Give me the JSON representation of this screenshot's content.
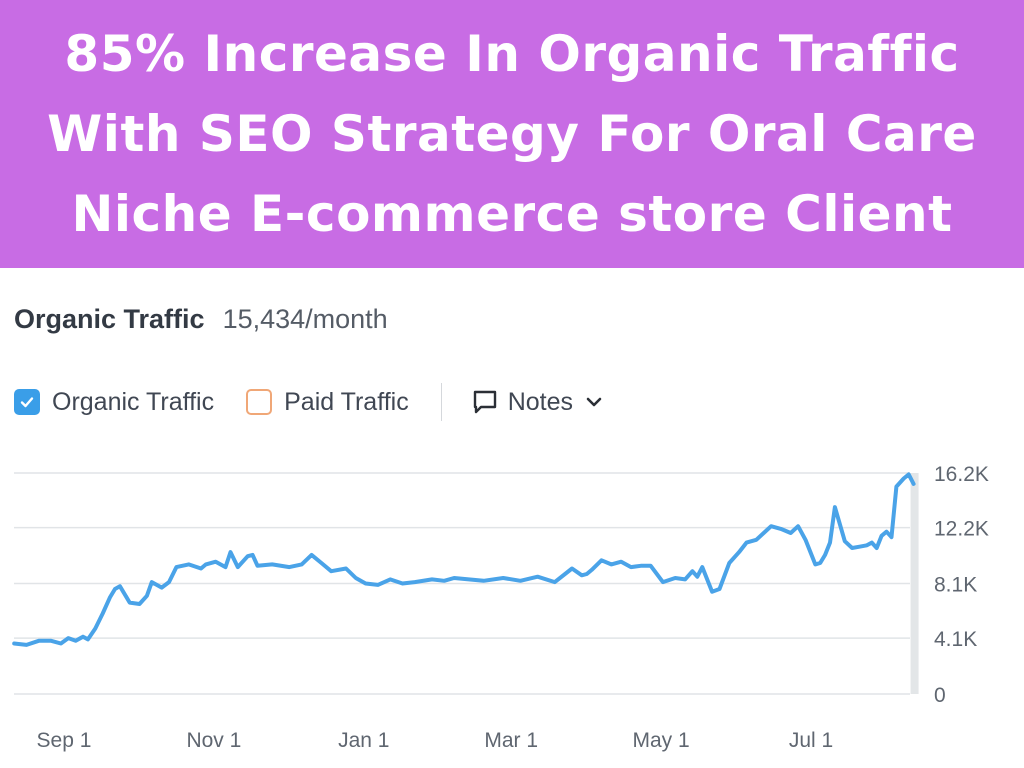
{
  "banner": {
    "lines": [
      "85% Increase In Organic Traffic",
      "With SEO Strategy For Oral Care",
      "Niche E-commerce store Client"
    ]
  },
  "metric": {
    "label": "Organic Traffic",
    "value": "15,434/month"
  },
  "legend": {
    "organic_label": "Organic Traffic",
    "organic_checked": true,
    "paid_label": "Paid Traffic",
    "paid_checked": false,
    "notes_label": "Notes"
  },
  "colors": {
    "banner": "#c86ce4",
    "series": "#4aa3e8",
    "paid": "#f0a777"
  },
  "chart_data": {
    "type": "line",
    "title": "",
    "xlabel": "",
    "ylabel": "",
    "ylim": [
      0,
      16200
    ],
    "x_tick_labels": [
      "Sep 1",
      "Nov 1",
      "Jan 1",
      "Mar 1",
      "May 1",
      "Jul 1"
    ],
    "y_tick_labels": [
      "0",
      "4.1K",
      "8.1K",
      "12.2K",
      "16.2K"
    ],
    "y_ticks": [
      0,
      4100,
      8100,
      12200,
      16200
    ],
    "grid": true,
    "legend_position": "top-left",
    "series": [
      {
        "name": "Organic Traffic",
        "x": [
          "2023-08-15",
          "2023-08-20",
          "2023-08-25",
          "2023-08-30",
          "2023-09-03",
          "2023-09-06",
          "2023-09-09",
          "2023-09-12",
          "2023-09-14",
          "2023-09-17",
          "2023-09-20",
          "2023-09-23",
          "2023-09-25",
          "2023-09-27",
          "2023-10-01",
          "2023-10-05",
          "2023-10-08",
          "2023-10-10",
          "2023-10-14",
          "2023-10-17",
          "2023-10-20",
          "2023-10-25",
          "2023-10-30",
          "2023-11-01",
          "2023-11-05",
          "2023-11-09",
          "2023-11-11",
          "2023-11-14",
          "2023-11-18",
          "2023-11-20",
          "2023-11-22",
          "2023-11-28",
          "2023-12-05",
          "2023-12-10",
          "2023-12-14",
          "2023-12-18",
          "2023-12-22",
          "2023-12-28",
          "2024-01-01",
          "2024-01-05",
          "2024-01-10",
          "2024-01-15",
          "2024-01-20",
          "2024-01-25",
          "2024-02-01",
          "2024-02-06",
          "2024-02-10",
          "2024-02-16",
          "2024-02-22",
          "2024-03-01",
          "2024-03-08",
          "2024-03-15",
          "2024-03-22",
          "2024-03-29",
          "2024-04-02",
          "2024-04-04",
          "2024-04-06",
          "2024-04-10",
          "2024-04-14",
          "2024-04-18",
          "2024-04-22",
          "2024-04-26",
          "2024-04-30",
          "2024-05-05",
          "2024-05-10",
          "2024-05-14",
          "2024-05-17",
          "2024-05-19",
          "2024-05-21",
          "2024-05-25",
          "2024-05-28",
          "2024-06-01",
          "2024-06-05",
          "2024-06-08",
          "2024-06-12",
          "2024-06-15",
          "2024-06-18",
          "2024-06-22",
          "2024-06-26",
          "2024-06-29",
          "2024-07-02",
          "2024-07-06",
          "2024-07-08",
          "2024-07-10",
          "2024-07-12",
          "2024-07-14",
          "2024-07-18",
          "2024-07-21",
          "2024-07-24",
          "2024-07-27",
          "2024-07-29",
          "2024-07-31",
          "2024-08-02",
          "2024-08-04",
          "2024-08-06",
          "2024-08-08",
          "2024-08-11",
          "2024-08-13",
          "2024-08-15"
        ],
        "y": [
          3700,
          3600,
          3900,
          3900,
          3700,
          4100,
          3900,
          4200,
          4000,
          4800,
          5900,
          7100,
          7700,
          7900,
          6700,
          6600,
          7200,
          8200,
          7800,
          8200,
          9300,
          9500,
          9200,
          9500,
          9700,
          9300,
          10400,
          9300,
          10100,
          10200,
          9400,
          9500,
          9300,
          9500,
          10200,
          9600,
          9000,
          9200,
          8500,
          8100,
          8000,
          8400,
          8100,
          8200,
          8400,
          8300,
          8500,
          8400,
          8300,
          8500,
          8300,
          8600,
          8200,
          9200,
          8700,
          8800,
          9100,
          9800,
          9500,
          9700,
          9300,
          9400,
          9400,
          8200,
          8500,
          8400,
          9000,
          8600,
          9300,
          7500,
          7700,
          9600,
          10400,
          11100,
          11300,
          11800,
          12300,
          12100,
          11800,
          12300,
          11300,
          9500,
          9600,
          10200,
          11100,
          13700,
          11200,
          10700,
          10800,
          10900,
          11100,
          10700,
          11600,
          11900,
          11500,
          15200,
          15800,
          16100,
          15400
        ]
      }
    ]
  }
}
